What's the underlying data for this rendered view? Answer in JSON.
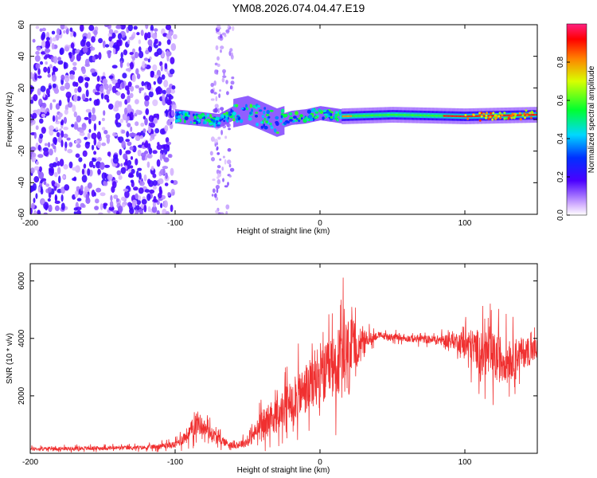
{
  "title": "YM08.2026.074.04.47.E19",
  "colors": {
    "snr_line": "#f03030",
    "axis": "#000000",
    "background": "#ffffff"
  },
  "chart_data": [
    {
      "type": "heatmap",
      "title": "YM08.2026.074.04.47.E19",
      "xlabel": "Height of straight line (km)",
      "ylabel": "Frequency (Hz)",
      "xlim": [
        -200,
        150
      ],
      "ylim": [
        -60,
        60
      ],
      "xticks": [
        -200,
        -100,
        0,
        100
      ],
      "yticks": [
        -60,
        -40,
        -20,
        0,
        20,
        40,
        60
      ],
      "xtick_labels": [
        "-200",
        "-100",
        "0",
        "100"
      ],
      "ytick_labels": [
        "-60",
        "-40",
        "-20",
        "0",
        "20",
        "40",
        "60"
      ],
      "colorbar": {
        "label": "Normalized spectral amplitude",
        "range": [
          0,
          1
        ],
        "ticks": [
          0.0,
          0.2,
          0.4,
          0.6,
          0.8
        ],
        "tick_labels": [
          "0.0",
          "0.2",
          "0.4",
          "0.6",
          "0.8"
        ]
      },
      "band_center_hz": [
        {
          "x": -100,
          "f": 2
        },
        {
          "x": -90,
          "f": 1
        },
        {
          "x": -80,
          "f": 0
        },
        {
          "x": -70,
          "f": -1
        },
        {
          "x": -60,
          "f": 4
        },
        {
          "x": -50,
          "f": 6
        },
        {
          "x": -40,
          "f": 2
        },
        {
          "x": -30,
          "f": -2
        },
        {
          "x": -20,
          "f": 1
        },
        {
          "x": -10,
          "f": 2
        },
        {
          "x": 0,
          "f": 4
        },
        {
          "x": 15,
          "f": 2
        },
        {
          "x": 50,
          "f": 3
        },
        {
          "x": 100,
          "f": 2
        },
        {
          "x": 150,
          "f": 3
        }
      ],
      "regions": [
        {
          "name": "noise",
          "x_range": [
            -200,
            -100
          ],
          "f_range": [
            -60,
            60
          ],
          "amplitude": 0.15
        },
        {
          "name": "scatter",
          "x_range": [
            -75,
            -60
          ],
          "f_range": [
            -60,
            60
          ],
          "amplitude": 0.1
        },
        {
          "name": "carrier-onset",
          "x_range": [
            -100,
            15
          ],
          "f_range": [
            -15,
            15
          ],
          "amplitude": 0.45
        },
        {
          "name": "carrier-stable",
          "x_range": [
            15,
            90
          ],
          "f_range": [
            -5,
            5
          ],
          "amplitude": 0.35
        },
        {
          "name": "carrier-peak",
          "x_range": [
            90,
            150
          ],
          "f_range": [
            -3,
            8
          ],
          "amplitude": 0.9
        }
      ]
    },
    {
      "type": "line",
      "xlabel": "Height of straight line (km)",
      "ylabel": "SNR (10 * v/v)",
      "xlim": [
        -200,
        150
      ],
      "ylim": [
        0,
        6600
      ],
      "xticks": [
        -200,
        -100,
        0,
        100
      ],
      "yticks": [
        2000,
        4000,
        6000
      ],
      "xtick_labels": [
        "-200",
        "-100",
        "0",
        "100"
      ],
      "ytick_labels": [
        "2000",
        "4000",
        "6000"
      ],
      "series": [
        {
          "name": "SNR",
          "envelope": {
            "x": [
              -200,
              -120,
              -100,
              -90,
              -85,
              -80,
              -70,
              -60,
              -50,
              -40,
              -30,
              -20,
              -10,
              0,
              10,
              20,
              28,
              40,
              60,
              80,
              95,
              100,
              110,
              120,
              130,
              140,
              150
            ],
            "mean": [
              150,
              200,
              300,
              700,
              1100,
              900,
              500,
              250,
              400,
              1000,
              1300,
              1800,
              2200,
              2600,
              3000,
              3300,
              3900,
              4100,
              4000,
              3950,
              3900,
              3800,
              3600,
              3300,
              3300,
              3500,
              3600
            ],
            "spread": [
              100,
              120,
              200,
              500,
              700,
              500,
              300,
              150,
              300,
              800,
              1000,
              1300,
              1500,
              1700,
              1800,
              2600,
              600,
              200,
              200,
              250,
              500,
              900,
              1200,
              1500,
              1200,
              900,
              700
            ]
          }
        }
      ]
    }
  ]
}
